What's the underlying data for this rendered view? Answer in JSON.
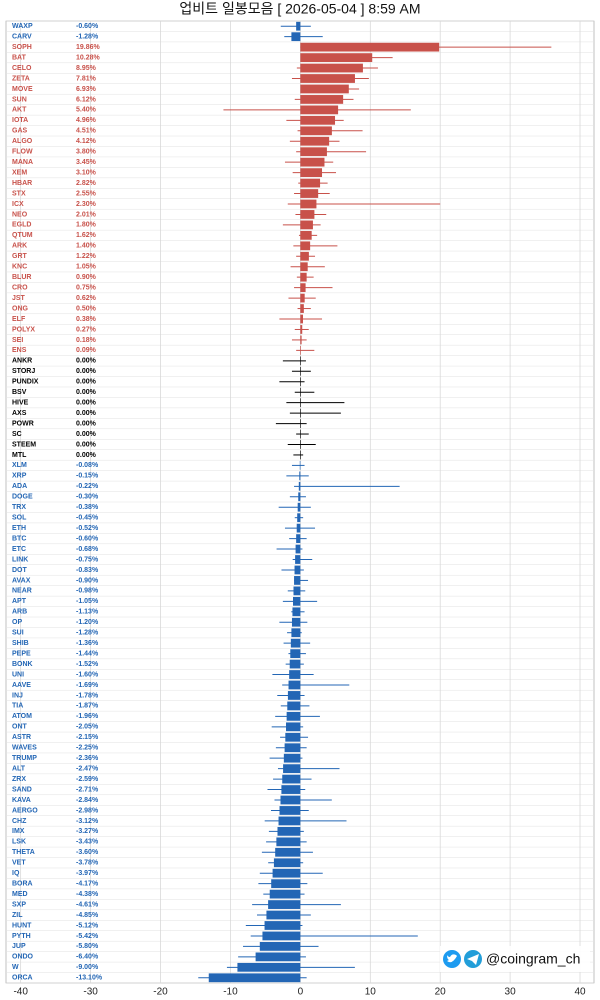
{
  "chart_data": {
    "type": "range-bar",
    "title": "업비트 일봉모음 [ 2026-05-04 ]  8:59 AM",
    "annotation": "@coingram_ch",
    "up_color": "#c8514a",
    "down_color": "#2366b5",
    "flat_color": "#000000",
    "xlim": [
      -42.1,
      42
    ],
    "xticks": [
      -40,
      -30,
      -20,
      -10,
      0,
      10,
      20,
      30,
      40
    ],
    "grid": true,
    "categories": [
      "WAXP",
      "CARV",
      "SOPH",
      "BAT",
      "CELO",
      "ZETA",
      "MOVE",
      "SUN",
      "AKT",
      "IOTA",
      "GAS",
      "ALGO",
      "FLOW",
      "MANA",
      "XEM",
      "HBAR",
      "STX",
      "ICX",
      "NEO",
      "EGLD",
      "QTUM",
      "ARK",
      "GRT",
      "KNC",
      "BLUR",
      "CRO",
      "JST",
      "ONG",
      "ELF",
      "POLYX",
      "SEI",
      "ENS",
      "ANKR",
      "STORJ",
      "PUNDIX",
      "BSV",
      "HIVE",
      "AXS",
      "POWR",
      "SC",
      "STEEM",
      "MTL",
      "XLM",
      "XRP",
      "ADA",
      "DOGE",
      "TRX",
      "SOL",
      "ETH",
      "BTC",
      "ETC",
      "LINK",
      "DOT",
      "AVAX",
      "NEAR",
      "APT",
      "ARB",
      "OP",
      "SUI",
      "SHIB",
      "PEPE",
      "BONK",
      "UNI",
      "AAVE",
      "INJ",
      "TIA",
      "ATOM",
      "ONT",
      "ASTR",
      "WAVES",
      "TRUMP",
      "ALT",
      "ZRX",
      "SAND",
      "KAVA",
      "AERGO",
      "CHZ",
      "IMX",
      "LSK",
      "THETA",
      "VET",
      "IQ",
      "BORA",
      "MED",
      "SXP",
      "ZIL",
      "HUNT",
      "PYTH",
      "JUP",
      "ONDO",
      "W",
      "ORCA"
    ],
    "values": [
      -0.6,
      -1.28,
      19.86,
      10.28,
      8.95,
      7.81,
      6.93,
      6.12,
      5.4,
      4.96,
      4.51,
      4.12,
      3.8,
      3.45,
      3.1,
      2.82,
      2.55,
      2.3,
      2.01,
      1.8,
      1.62,
      1.4,
      1.22,
      1.05,
      0.9,
      0.75,
      0.62,
      0.5,
      0.38,
      0.27,
      0.18,
      0.09,
      0,
      0,
      0,
      0,
      0,
      0,
      0,
      0,
      0,
      0,
      -0.08,
      -0.15,
      -0.22,
      -0.3,
      -0.38,
      -0.45,
      -0.52,
      -0.6,
      -0.68,
      -0.75,
      -0.83,
      -0.9,
      -0.98,
      -1.05,
      -1.13,
      -1.2,
      -1.28,
      -1.36,
      -1.44,
      -1.52,
      -1.6,
      -1.69,
      -1.78,
      -1.87,
      -1.96,
      -2.05,
      -2.15,
      -2.25,
      -2.36,
      -2.47,
      -2.59,
      -2.71,
      -2.84,
      -2.98,
      -3.12,
      -3.27,
      -3.43,
      -3.6,
      -3.78,
      -3.97,
      -4.17,
      -4.38,
      -4.61,
      -4.85,
      -5.12,
      -5.42,
      -5.8,
      -6.4,
      -9.0,
      -13.1
    ],
    "value_labels": [
      "-0.60%",
      "-1.28%",
      "19.86%",
      "10.28%",
      "8.95%",
      "7.81%",
      "6.93%",
      "6.12%",
      "5.40%",
      "4.96%",
      "4.51%",
      "4.12%",
      "3.80%",
      "3.45%",
      "3.10%",
      "2.82%",
      "2.55%",
      "2.30%",
      "2.01%",
      "1.80%",
      "1.62%",
      "1.40%",
      "1.22%",
      "1.05%",
      "0.90%",
      "0.75%",
      "0.62%",
      "0.50%",
      "0.38%",
      "0.27%",
      "0.18%",
      "0.09%",
      "0.00%",
      "0.00%",
      "0.00%",
      "0.00%",
      "0.00%",
      "0.00%",
      "0.00%",
      "0.00%",
      "0.00%",
      "0.00%",
      "-0.08%",
      "-0.15%",
      "-0.22%",
      "-0.30%",
      "-0.38%",
      "-0.45%",
      "-0.52%",
      "-0.60%",
      "-0.68%",
      "-0.75%",
      "-0.83%",
      "-0.90%",
      "-0.98%",
      "-1.05%",
      "-1.13%",
      "-1.20%",
      "-1.28%",
      "-1.36%",
      "-1.44%",
      "-1.52%",
      "-1.60%",
      "-1.69%",
      "-1.78%",
      "-1.87%",
      "-1.96%",
      "-2.05%",
      "-2.15%",
      "-2.25%",
      "-2.36%",
      "-2.47%",
      "-2.59%",
      "-2.71%",
      "-2.84%",
      "-2.98%",
      "-3.12%",
      "-3.27%",
      "-3.43%",
      "-3.60%",
      "-3.78%",
      "-3.97%",
      "-4.17%",
      "-4.38%",
      "-4.61%",
      "-4.85%",
      "-5.12%",
      "-5.42%",
      "-5.80%",
      "-6.40%",
      "-9.00%",
      "-13.10%"
    ],
    "lows": [
      -2.8,
      -2.3,
      0,
      0.5,
      -0.5,
      -1.2,
      0.3,
      -0.8,
      -11.0,
      -2.0,
      -0.4,
      -1.5,
      -0.6,
      -2.2,
      -1.1,
      -0.3,
      -0.9,
      -1.8,
      -0.7,
      -2.5,
      -0.2,
      -1.0,
      -0.6,
      -1.4,
      -0.5,
      -0.9,
      -1.7,
      -0.4,
      -3.0,
      -0.8,
      -1.2,
      -0.6,
      -2.5,
      -1.2,
      -3.0,
      -0.8,
      -2.0,
      -1.5,
      -3.5,
      -0.6,
      -1.8,
      -1.0,
      -1.2,
      -2.0,
      -0.9,
      -1.5,
      -3.1,
      -0.8,
      -2.2,
      -1.6,
      -3.4,
      -1.1,
      -2.7,
      -0.9,
      -1.8,
      -2.5,
      -1.3,
      -3.0,
      -1.9,
      -2.4,
      -1.7,
      -2.1,
      -4.0,
      -2.6,
      -3.3,
      -2.8,
      -3.6,
      -4.1,
      -2.9,
      -3.5,
      -4.4,
      -3.2,
      -3.9,
      -4.7,
      -3.7,
      -4.2,
      -5.1,
      -4.5,
      -4.9,
      -5.5,
      -4.6,
      -5.8,
      -6.0,
      -5.3,
      -6.9,
      -6.2,
      -7.8,
      -7.1,
      -8.2,
      -8.9,
      -10.5,
      -14.6
    ],
    "highs": [
      1.5,
      3.2,
      35.9,
      13.2,
      11.1,
      9.8,
      8.4,
      7.6,
      15.8,
      6.2,
      8.9,
      5.6,
      9.4,
      4.7,
      5.1,
      3.9,
      4.2,
      20.0,
      3.7,
      2.9,
      2.4,
      5.3,
      2.1,
      3.5,
      1.9,
      4.6,
      2.2,
      1.5,
      3.1,
      1.2,
      0.9,
      2.0,
      0.8,
      1.5,
      0.6,
      2.0,
      6.3,
      5.8,
      0.9,
      1.2,
      2.2,
      0.4,
      0.6,
      1.2,
      14.2,
      0.8,
      1.5,
      0.4,
      2.1,
      0.9,
      0.3,
      1.7,
      0.5,
      1.1,
      0.7,
      2.4,
      0.6,
      1.0,
      0.2,
      1.4,
      0.8,
      0.5,
      1.9,
      7.0,
      0.6,
      1.3,
      2.8,
      0.4,
      1.1,
      0.9,
      0.3,
      5.6,
      1.6,
      0.7,
      4.5,
      1.2,
      6.6,
      0.5,
      0.9,
      1.8,
      0.4,
      3.2,
      1.0,
      0.6,
      5.8,
      1.5,
      0.3,
      16.8,
      2.6,
      0.8,
      7.8,
      0.9
    ]
  }
}
